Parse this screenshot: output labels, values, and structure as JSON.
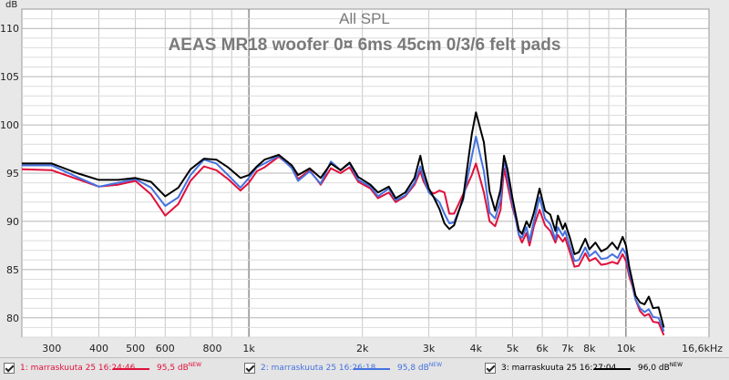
{
  "chart_data": {
    "type": "line",
    "title": "All SPL",
    "subtitle": "AEAS MR18 woofer 0¤ 6ms 45cm 0/3/6 felt pads",
    "ylabel": "dB",
    "xlabel": "",
    "x_scale": "log",
    "xlim": [
      250,
      16600
    ],
    "ylim": [
      78,
      112
    ],
    "x_ticks": [
      {
        "v": 300,
        "label": "300"
      },
      {
        "v": 400,
        "label": "400"
      },
      {
        "v": 500,
        "label": "500"
      },
      {
        "v": 600,
        "label": "600"
      },
      {
        "v": 800,
        "label": "800"
      },
      {
        "v": 1000,
        "label": "1k"
      },
      {
        "v": 2000,
        "label": "2k"
      },
      {
        "v": 3000,
        "label": "3k"
      },
      {
        "v": 4000,
        "label": "4k"
      },
      {
        "v": 5000,
        "label": "5k"
      },
      {
        "v": 6000,
        "label": "6k"
      },
      {
        "v": 7000,
        "label": "7k"
      },
      {
        "v": 8000,
        "label": "8k"
      },
      {
        "v": 10000,
        "label": "10k"
      },
      {
        "v": 16600,
        "label": "16,6kHz"
      }
    ],
    "y_ticks": [
      {
        "v": 80,
        "label": "80"
      },
      {
        "v": 85,
        "label": "85"
      },
      {
        "v": 90,
        "label": "90"
      },
      {
        "v": 95,
        "label": "95"
      },
      {
        "v": 100,
        "label": "100"
      },
      {
        "v": 105,
        "label": "105"
      },
      {
        "v": 110,
        "label": "110"
      }
    ],
    "grid": true,
    "series": [
      {
        "color": "#e0103a",
        "points": [
          [
            250,
            95.4
          ],
          [
            300,
            95.3
          ],
          [
            350,
            94.4
          ],
          [
            400,
            93.6
          ],
          [
            450,
            93.8
          ],
          [
            500,
            94.2
          ],
          [
            550,
            92.8
          ],
          [
            600,
            90.6
          ],
          [
            650,
            91.8
          ],
          [
            700,
            94.2
          ],
          [
            760,
            95.7
          ],
          [
            820,
            95.3
          ],
          [
            880,
            94.4
          ],
          [
            950,
            93.2
          ],
          [
            1000,
            94.0
          ],
          [
            1050,
            95.2
          ],
          [
            1100,
            95.6
          ],
          [
            1200,
            96.7
          ],
          [
            1300,
            95.6
          ],
          [
            1350,
            94.4
          ],
          [
            1450,
            95.3
          ],
          [
            1550,
            93.8
          ],
          [
            1650,
            95.5
          ],
          [
            1750,
            95.0
          ],
          [
            1850,
            95.6
          ],
          [
            1950,
            94.1
          ],
          [
            2100,
            93.4
          ],
          [
            2200,
            92.4
          ],
          [
            2350,
            93.0
          ],
          [
            2450,
            92.0
          ],
          [
            2600,
            92.6
          ],
          [
            2750,
            93.8
          ],
          [
            2850,
            95.2
          ],
          [
            2900,
            94.2
          ],
          [
            3000,
            93.1
          ],
          [
            3100,
            92.9
          ],
          [
            3200,
            93.2
          ],
          [
            3300,
            93.0
          ],
          [
            3400,
            90.8
          ],
          [
            3500,
            90.8
          ],
          [
            3700,
            92.8
          ],
          [
            3900,
            94.8
          ],
          [
            4000,
            96.0
          ],
          [
            4200,
            93.0
          ],
          [
            4350,
            90.0
          ],
          [
            4500,
            89.5
          ],
          [
            4650,
            91.2
          ],
          [
            4750,
            95.5
          ],
          [
            4850,
            93.8
          ],
          [
            5000,
            91.4
          ],
          [
            5100,
            90.3
          ],
          [
            5200,
            88.6
          ],
          [
            5300,
            87.8
          ],
          [
            5450,
            88.8
          ],
          [
            5550,
            87.5
          ],
          [
            5700,
            89.5
          ],
          [
            5900,
            91.2
          ],
          [
            6100,
            89.6
          ],
          [
            6300,
            89.0
          ],
          [
            6500,
            87.8
          ],
          [
            6600,
            88.6
          ],
          [
            6800,
            87.9
          ],
          [
            6900,
            88.3
          ],
          [
            7100,
            86.8
          ],
          [
            7300,
            85.3
          ],
          [
            7500,
            85.4
          ],
          [
            7800,
            86.7
          ],
          [
            8000,
            85.9
          ],
          [
            8300,
            86.2
          ],
          [
            8600,
            85.5
          ],
          [
            8900,
            85.6
          ],
          [
            9200,
            85.8
          ],
          [
            9500,
            85.6
          ],
          [
            9800,
            86.6
          ],
          [
            10000,
            85.9
          ],
          [
            10200,
            84.3
          ],
          [
            10400,
            83.3
          ],
          [
            10600,
            81.9
          ],
          [
            10900,
            80.7
          ],
          [
            11200,
            80.2
          ],
          [
            11500,
            80.4
          ],
          [
            11800,
            79.6
          ],
          [
            12200,
            79.5
          ],
          [
            12600,
            78.2
          ]
        ]
      },
      {
        "color": "#4472e0",
        "points": [
          [
            250,
            95.8
          ],
          [
            300,
            95.8
          ],
          [
            350,
            94.6
          ],
          [
            400,
            93.6
          ],
          [
            450,
            94.0
          ],
          [
            500,
            94.4
          ],
          [
            550,
            93.5
          ],
          [
            600,
            91.6
          ],
          [
            650,
            92.5
          ],
          [
            700,
            94.8
          ],
          [
            760,
            96.4
          ],
          [
            820,
            96.0
          ],
          [
            880,
            94.8
          ],
          [
            950,
            93.5
          ],
          [
            1000,
            94.5
          ],
          [
            1050,
            95.6
          ],
          [
            1100,
            96.0
          ],
          [
            1200,
            96.8
          ],
          [
            1300,
            95.5
          ],
          [
            1350,
            94.2
          ],
          [
            1450,
            95.2
          ],
          [
            1550,
            93.9
          ],
          [
            1650,
            96.2
          ],
          [
            1750,
            95.3
          ],
          [
            1850,
            96.0
          ],
          [
            1950,
            94.3
          ],
          [
            2100,
            93.6
          ],
          [
            2200,
            92.6
          ],
          [
            2350,
            93.4
          ],
          [
            2450,
            92.2
          ],
          [
            2600,
            92.7
          ],
          [
            2750,
            94.0
          ],
          [
            2850,
            95.7
          ],
          [
            2900,
            94.6
          ],
          [
            3000,
            93.0
          ],
          [
            3100,
            92.5
          ],
          [
            3200,
            92.0
          ],
          [
            3300,
            90.8
          ],
          [
            3400,
            89.8
          ],
          [
            3500,
            89.9
          ],
          [
            3700,
            92.2
          ],
          [
            3900,
            96.7
          ],
          [
            4000,
            98.8
          ],
          [
            4200,
            95.2
          ],
          [
            4350,
            90.9
          ],
          [
            4500,
            90.3
          ],
          [
            4650,
            92.2
          ],
          [
            4750,
            96.5
          ],
          [
            4850,
            94.6
          ],
          [
            5000,
            91.8
          ],
          [
            5100,
            90.3
          ],
          [
            5200,
            88.6
          ],
          [
            5300,
            88.3
          ],
          [
            5450,
            89.4
          ],
          [
            5550,
            88.0
          ],
          [
            5700,
            90.0
          ],
          [
            5900,
            92.5
          ],
          [
            6100,
            90.3
          ],
          [
            6300,
            89.7
          ],
          [
            6500,
            88.1
          ],
          [
            6600,
            89.4
          ],
          [
            6800,
            88.5
          ],
          [
            6900,
            89.0
          ],
          [
            7100,
            87.4
          ],
          [
            7300,
            85.9
          ],
          [
            7500,
            86.0
          ],
          [
            7800,
            87.3
          ],
          [
            8000,
            86.4
          ],
          [
            8300,
            86.9
          ],
          [
            8600,
            86.1
          ],
          [
            8900,
            86.2
          ],
          [
            9200,
            86.6
          ],
          [
            9500,
            86.2
          ],
          [
            9800,
            87.2
          ],
          [
            10000,
            86.6
          ],
          [
            10200,
            84.7
          ],
          [
            10400,
            83.5
          ],
          [
            10600,
            81.9
          ],
          [
            10900,
            81.0
          ],
          [
            11200,
            80.6
          ],
          [
            11500,
            80.9
          ],
          [
            11800,
            80.1
          ],
          [
            12200,
            80.0
          ],
          [
            12600,
            78.6
          ]
        ]
      },
      {
        "color": "#000000",
        "points": [
          [
            250,
            96.0
          ],
          [
            300,
            96.0
          ],
          [
            350,
            95.0
          ],
          [
            400,
            94.3
          ],
          [
            450,
            94.3
          ],
          [
            500,
            94.5
          ],
          [
            550,
            94.1
          ],
          [
            600,
            92.6
          ],
          [
            650,
            93.5
          ],
          [
            700,
            95.4
          ],
          [
            760,
            96.5
          ],
          [
            820,
            96.4
          ],
          [
            880,
            95.6
          ],
          [
            950,
            94.5
          ],
          [
            1000,
            94.8
          ],
          [
            1050,
            95.7
          ],
          [
            1100,
            96.4
          ],
          [
            1200,
            96.9
          ],
          [
            1300,
            95.8
          ],
          [
            1350,
            94.8
          ],
          [
            1450,
            95.5
          ],
          [
            1550,
            94.5
          ],
          [
            1650,
            96.0
          ],
          [
            1750,
            95.3
          ],
          [
            1850,
            96.1
          ],
          [
            1950,
            94.6
          ],
          [
            2100,
            93.8
          ],
          [
            2200,
            93.0
          ],
          [
            2350,
            93.6
          ],
          [
            2450,
            92.4
          ],
          [
            2600,
            93.0
          ],
          [
            2750,
            94.5
          ],
          [
            2850,
            96.8
          ],
          [
            2900,
            95.3
          ],
          [
            3000,
            93.4
          ],
          [
            3100,
            92.4
          ],
          [
            3200,
            91.3
          ],
          [
            3300,
            89.8
          ],
          [
            3400,
            89.2
          ],
          [
            3500,
            89.6
          ],
          [
            3700,
            92.4
          ],
          [
            3900,
            99.0
          ],
          [
            4000,
            101.3
          ],
          [
            4200,
            98.2
          ],
          [
            4350,
            93.1
          ],
          [
            4500,
            91.1
          ],
          [
            4650,
            93.3
          ],
          [
            4750,
            96.8
          ],
          [
            4850,
            95.4
          ],
          [
            5000,
            92.4
          ],
          [
            5100,
            90.7
          ],
          [
            5200,
            89.1
          ],
          [
            5300,
            88.7
          ],
          [
            5450,
            90.0
          ],
          [
            5550,
            89.4
          ],
          [
            5700,
            90.9
          ],
          [
            5900,
            93.4
          ],
          [
            6100,
            91.1
          ],
          [
            6300,
            90.7
          ],
          [
            6500,
            89.0
          ],
          [
            6600,
            90.6
          ],
          [
            6800,
            89.2
          ],
          [
            6900,
            89.8
          ],
          [
            7100,
            88.3
          ],
          [
            7300,
            86.6
          ],
          [
            7500,
            86.8
          ],
          [
            7800,
            88.2
          ],
          [
            8000,
            87.1
          ],
          [
            8300,
            87.8
          ],
          [
            8600,
            86.9
          ],
          [
            8900,
            87.2
          ],
          [
            9200,
            87.8
          ],
          [
            9500,
            87.1
          ],
          [
            9800,
            88.4
          ],
          [
            10000,
            87.5
          ],
          [
            10200,
            85.3
          ],
          [
            10400,
            83.8
          ],
          [
            10600,
            82.3
          ],
          [
            10900,
            81.6
          ],
          [
            11200,
            81.4
          ],
          [
            11500,
            82.2
          ],
          [
            11800,
            81.0
          ],
          [
            12200,
            81.1
          ],
          [
            12600,
            79.0
          ]
        ]
      }
    ]
  },
  "legend": [
    {
      "label": "1: marraskuuta 25 16:24:46",
      "value": "95,5 dB",
      "sup": "NEW",
      "color": "#e0103a"
    },
    {
      "label": "2: marraskuuta 25 16:26:18",
      "value": "95,8 dB",
      "sup": "NEW",
      "color": "#4472e0"
    },
    {
      "label": "3: marraskuuta 25 16:27:04",
      "value": "96,0 dB",
      "sup": "NEW",
      "color": "#000000"
    }
  ]
}
